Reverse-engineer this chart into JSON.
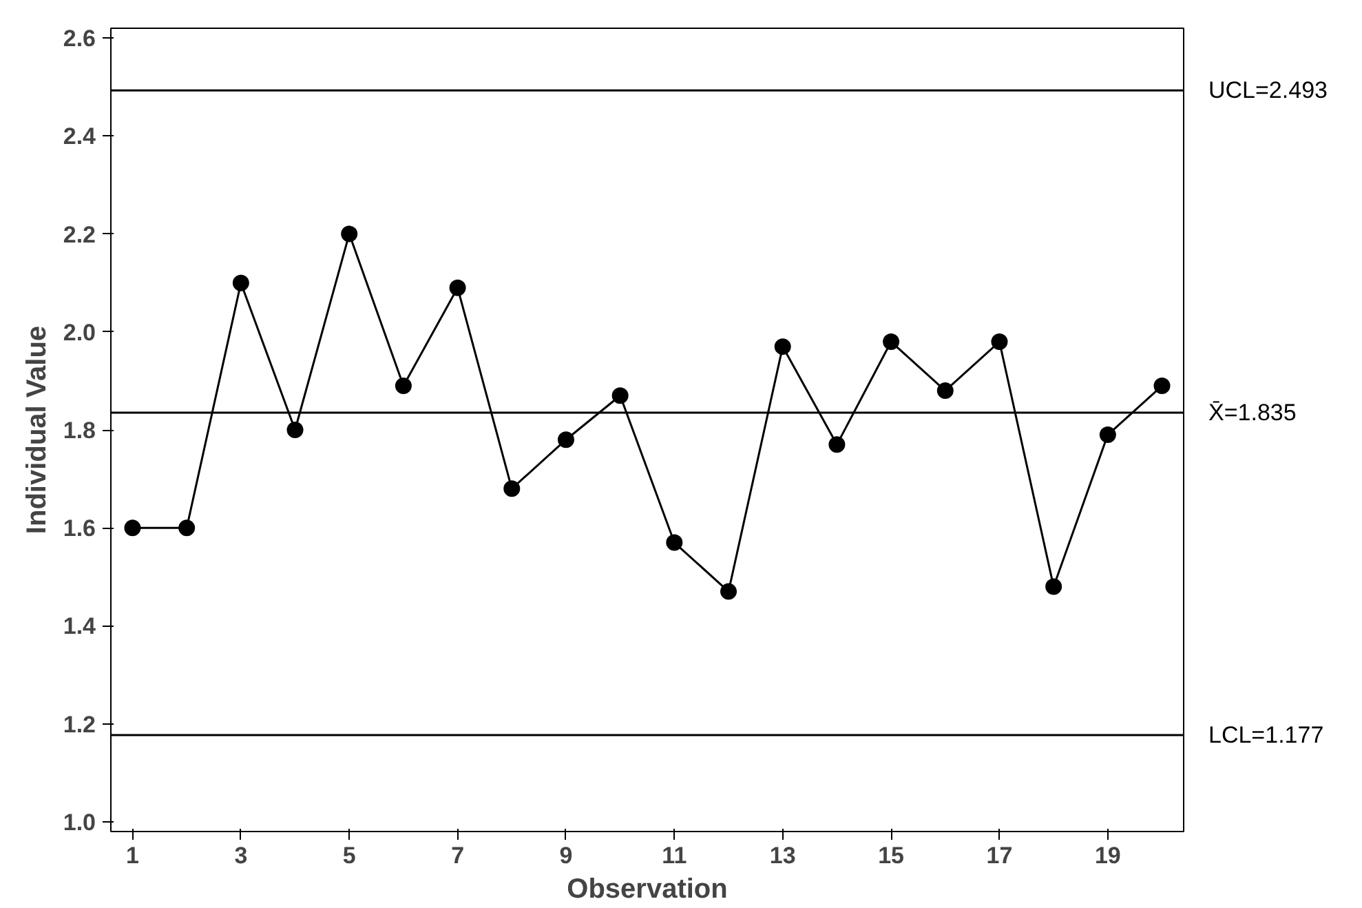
{
  "chart_data": {
    "type": "line",
    "xlabel": "Observation",
    "ylabel": "Individual Value",
    "x": [
      1,
      2,
      3,
      4,
      5,
      6,
      7,
      8,
      9,
      10,
      11,
      12,
      13,
      14,
      15,
      16,
      17,
      18,
      19,
      20
    ],
    "series": [
      {
        "color": "#000000",
        "values": [
          1.6,
          1.6,
          2.1,
          1.8,
          2.2,
          1.89,
          2.09,
          1.68,
          1.78,
          1.87,
          1.57,
          1.47,
          1.97,
          1.77,
          1.98,
          1.88,
          1.98,
          1.48,
          1.79,
          1.89
        ]
      }
    ],
    "marker": "circle",
    "line_style": "solid",
    "xlim": [
      0.6,
      20.4
    ],
    "ylim": [
      0.98,
      2.62
    ],
    "xticks": [
      1,
      3,
      5,
      7,
      9,
      11,
      13,
      15,
      17,
      19
    ],
    "yticks": [
      {
        "value": 1.0,
        "label": "1.0"
      },
      {
        "value": 1.2,
        "label": "1.2"
      },
      {
        "value": 1.4,
        "label": "1.4"
      },
      {
        "value": 1.6,
        "label": "1.6"
      },
      {
        "value": 1.8,
        "label": "1.8"
      },
      {
        "value": 2.0,
        "label": "2.0"
      },
      {
        "value": 2.2,
        "label": "2.2"
      },
      {
        "value": 2.4,
        "label": "2.4"
      },
      {
        "value": 2.6,
        "label": "2.6"
      }
    ],
    "ref_lines": [
      {
        "axis": "y",
        "value": 2.493,
        "label": "UCL=2.493",
        "color": "#000000"
      },
      {
        "axis": "y",
        "value": 1.835,
        "label": "X̄=1.835",
        "color": "#000000"
      },
      {
        "axis": "y",
        "value": 1.177,
        "label": "LCL=1.177",
        "color": "#000000"
      }
    ]
  }
}
